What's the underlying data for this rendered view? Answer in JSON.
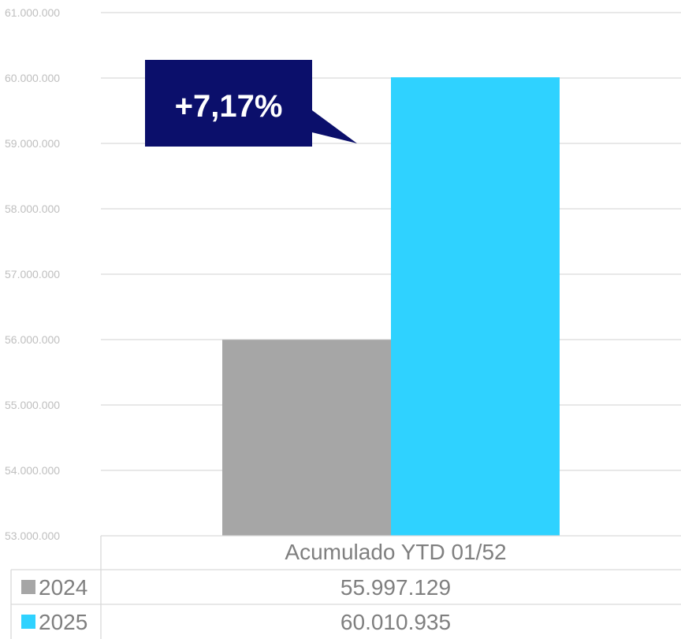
{
  "chart_data": {
    "type": "bar",
    "categories": [
      "Acumulado YTD 01/52"
    ],
    "series": [
      {
        "name": "2024",
        "values": [
          55997129
        ],
        "display": "55.997.129",
        "color": "#a6a6a6"
      },
      {
        "name": "2025",
        "values": [
          60010935
        ],
        "display": "60.010.935",
        "color": "#2fd2ff"
      }
    ],
    "ylim": [
      53000000,
      61000000
    ],
    "yticks": [
      {
        "value": 53000000,
        "label": "53.000.000"
      },
      {
        "value": 54000000,
        "label": "54.000.000"
      },
      {
        "value": 55000000,
        "label": "55.000.000"
      },
      {
        "value": 56000000,
        "label": "56.000.000"
      },
      {
        "value": 57000000,
        "label": "57.000.000"
      },
      {
        "value": 58000000,
        "label": "58.000.000"
      },
      {
        "value": 59000000,
        "label": "59.000.000"
      },
      {
        "value": 60000000,
        "label": "60.000.000"
      },
      {
        "value": 61000000,
        "label": "61.000.000"
      }
    ],
    "grid": true,
    "legend": "data-table-left",
    "annotation": {
      "text": "+7,17%",
      "color": "#0b0f6b"
    }
  }
}
